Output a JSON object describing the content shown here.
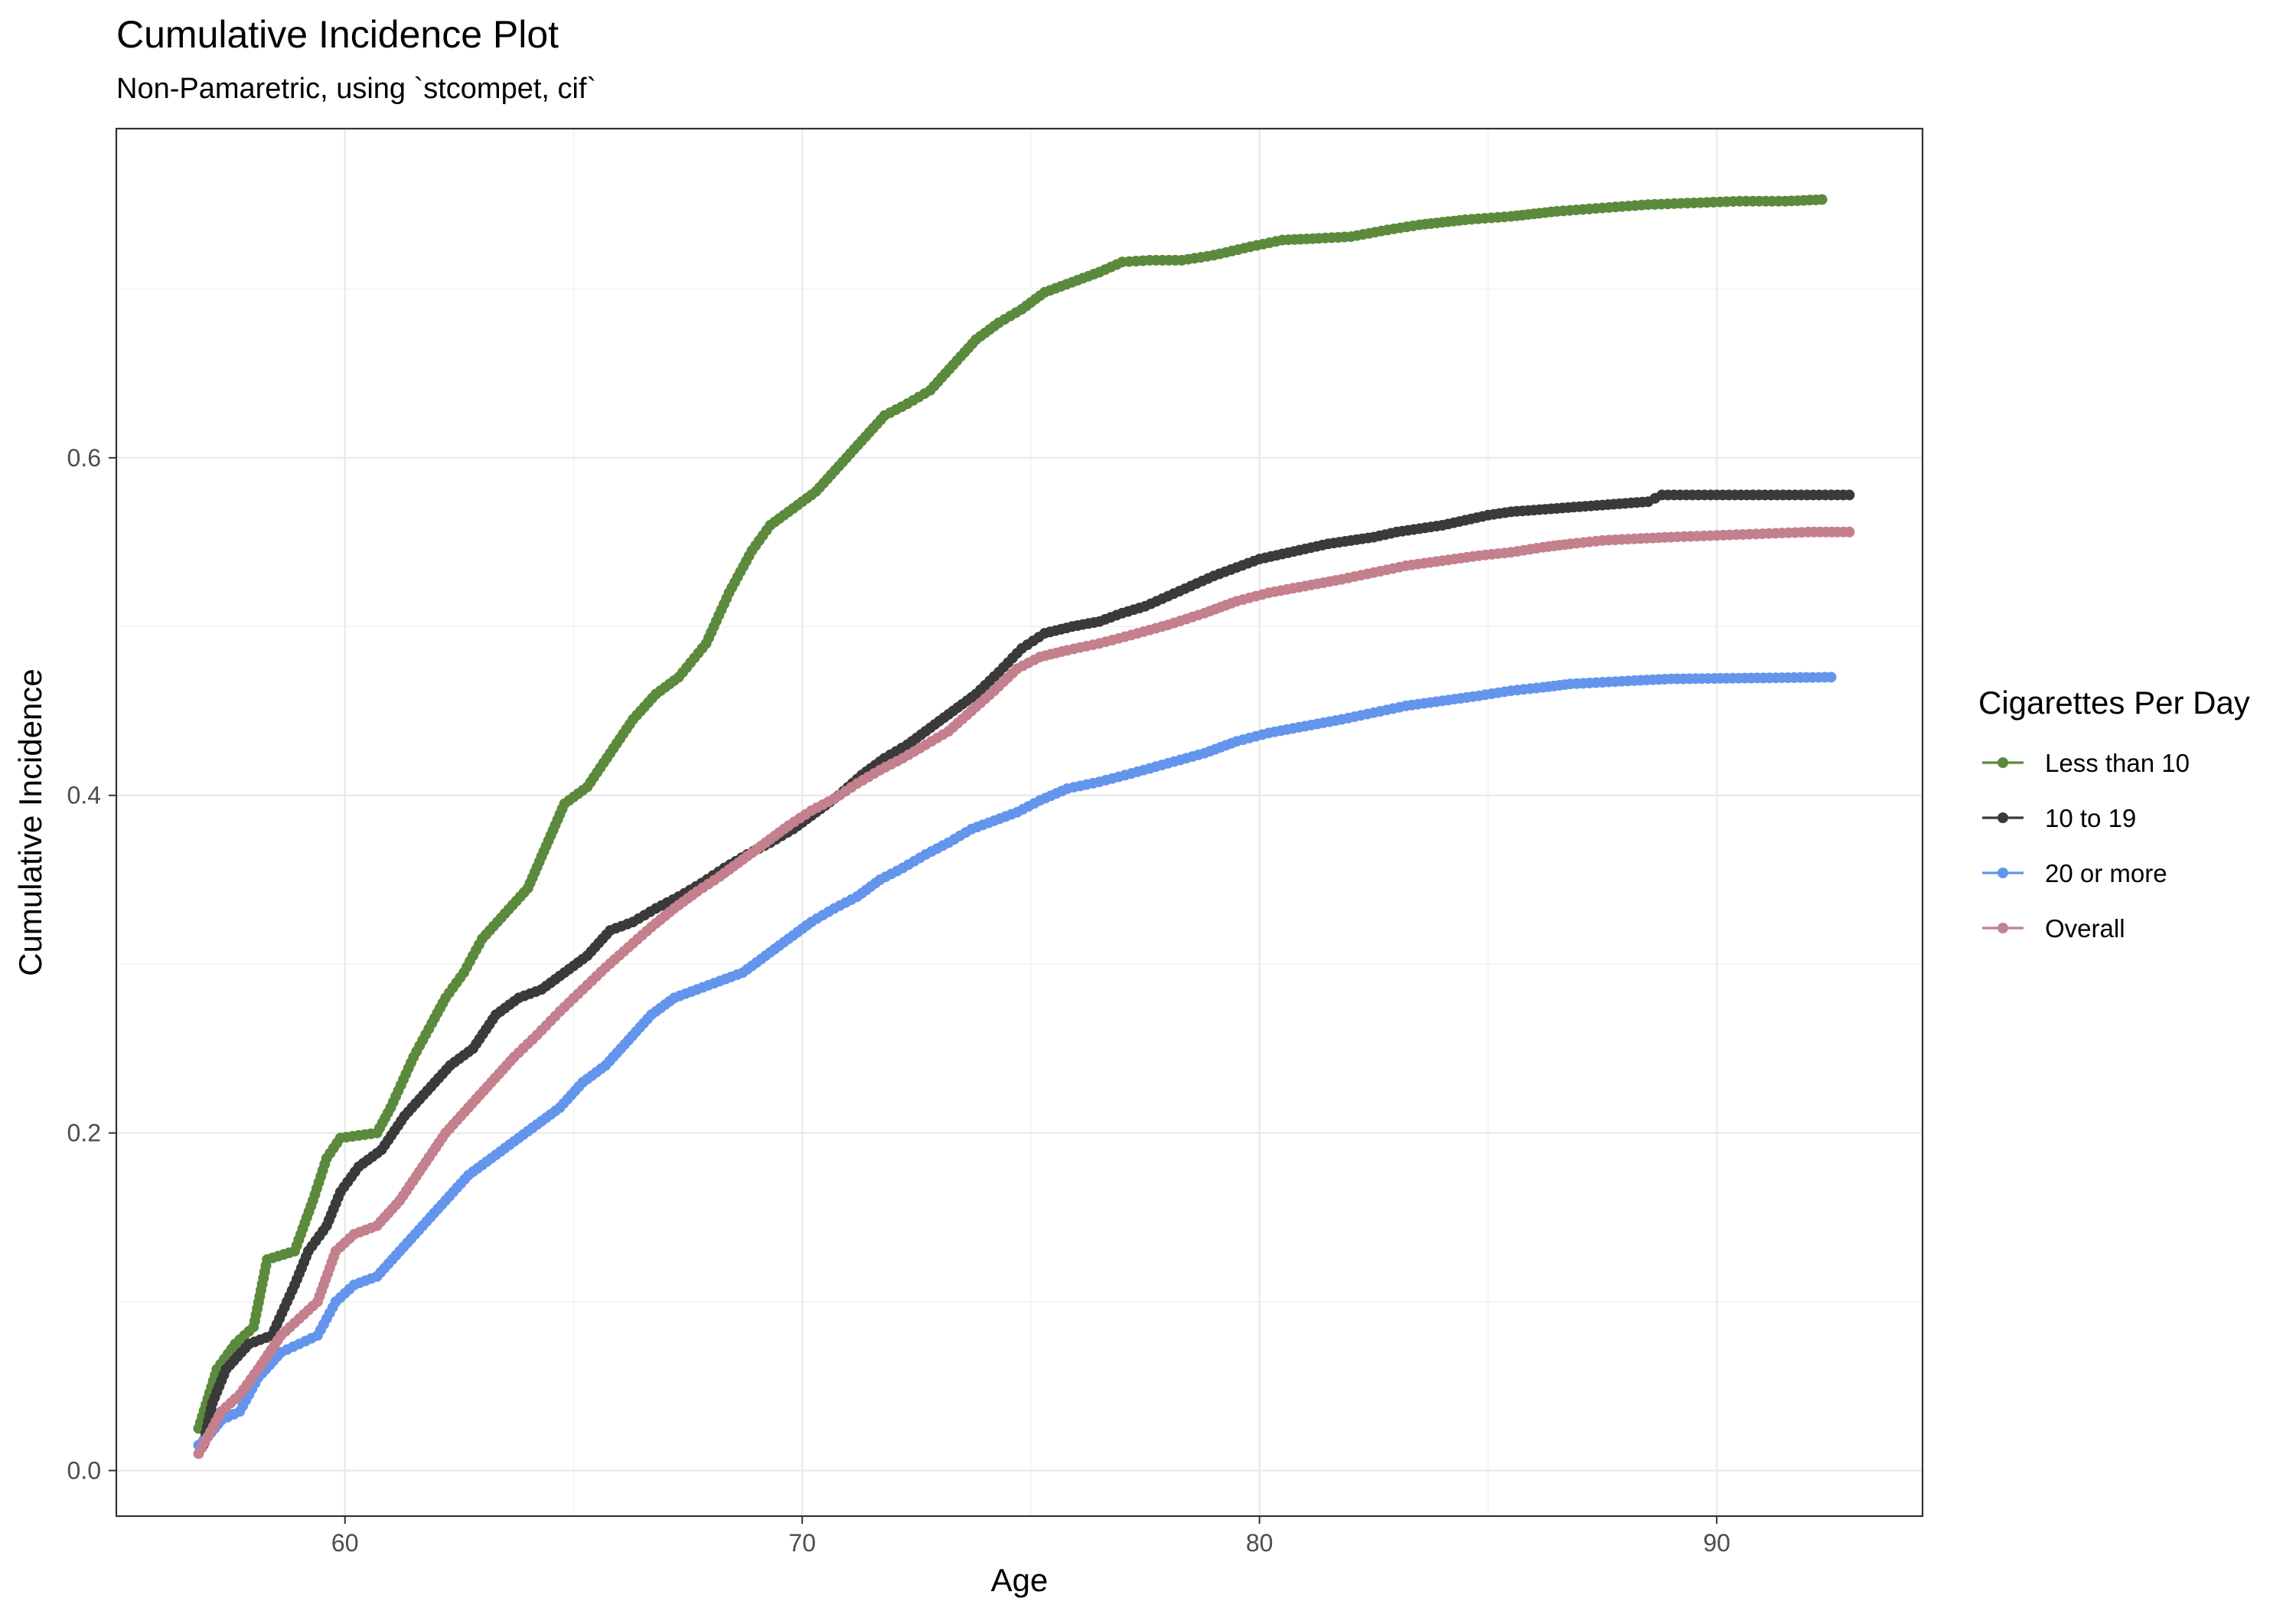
{
  "chart_data": {
    "type": "line",
    "title": "Cumulative Incidence Plot",
    "subtitle": "Non-Pamaretric, using `stcompet, cif`",
    "xlabel": "Age",
    "ylabel": "Cumulative Incidence",
    "xlim": [
      55,
      94.5
    ],
    "ylim": [
      -0.027,
      0.795
    ],
    "x_ticks": [
      60,
      70,
      80,
      90
    ],
    "y_ticks": [
      0.0,
      0.2,
      0.4,
      0.6
    ],
    "x_tick_labels": [
      "60",
      "70",
      "80",
      "90"
    ],
    "y_tick_labels": [
      "0.0",
      "0.2",
      "0.4",
      "0.6"
    ],
    "grid": true,
    "step_curves": false,
    "markers": "points",
    "legend": {
      "title": "Cigarettes Per Day",
      "position": "right"
    },
    "series": [
      {
        "name": "Less than 10",
        "color": "#5b8a3c",
        "x": [
          56.8,
          57.2,
          57.6,
          58.0,
          58.3,
          58.9,
          59.3,
          59.6,
          59.9,
          60.7,
          61.0,
          61.5,
          61.9,
          62.2,
          62.6,
          63.0,
          63.5,
          64.0,
          64.4,
          64.8,
          65.3,
          65.8,
          66.3,
          66.8,
          67.3,
          67.9,
          68.4,
          68.9,
          69.3,
          69.8,
          70.3,
          70.8,
          71.3,
          71.8,
          72.3,
          72.8,
          73.3,
          73.8,
          74.3,
          74.8,
          75.3,
          75.9,
          76.5,
          77.0,
          77.6,
          78.3,
          79.0,
          79.8,
          80.5,
          81.3,
          82.0,
          82.8,
          83.5,
          84.5,
          85.5,
          86.5,
          87.5,
          88.5,
          89.5,
          90.5,
          91.5,
          92.3
        ],
        "y": [
          0.025,
          0.06,
          0.075,
          0.085,
          0.125,
          0.13,
          0.16,
          0.185,
          0.197,
          0.2,
          0.215,
          0.245,
          0.265,
          0.28,
          0.295,
          0.315,
          0.33,
          0.345,
          0.37,
          0.395,
          0.405,
          0.425,
          0.445,
          0.46,
          0.47,
          0.49,
          0.52,
          0.545,
          0.56,
          0.57,
          0.58,
          0.595,
          0.61,
          0.625,
          0.632,
          0.64,
          0.655,
          0.67,
          0.68,
          0.688,
          0.698,
          0.704,
          0.71,
          0.716,
          0.717,
          0.717,
          0.72,
          0.725,
          0.729,
          0.73,
          0.731,
          0.735,
          0.738,
          0.741,
          0.743,
          0.746,
          0.748,
          0.75,
          0.751,
          0.752,
          0.752,
          0.753
        ]
      },
      {
        "name": "10 to 19",
        "color": "#3a3a3a",
        "x": [
          56.9,
          57.1,
          57.4,
          57.9,
          58.4,
          58.9,
          59.2,
          59.6,
          59.9,
          60.3,
          60.8,
          61.3,
          61.8,
          62.3,
          62.8,
          63.3,
          63.8,
          64.3,
          64.8,
          65.3,
          65.8,
          66.3,
          66.8,
          67.3,
          67.8,
          68.3,
          68.8,
          69.3,
          69.8,
          70.3,
          70.8,
          71.3,
          71.8,
          72.3,
          72.8,
          73.3,
          73.8,
          74.3,
          74.8,
          75.3,
          75.9,
          76.5,
          77.0,
          77.5,
          78.0,
          78.5,
          79.0,
          79.5,
          80.0,
          80.5,
          81.0,
          81.5,
          82.0,
          82.5,
          83.0,
          83.5,
          84.0,
          84.5,
          85.0,
          85.5,
          86.0,
          86.5,
          87.0,
          87.5,
          88.0,
          88.5,
          88.8,
          90.0,
          92.9
        ],
        "y": [
          0.015,
          0.04,
          0.06,
          0.075,
          0.08,
          0.11,
          0.13,
          0.145,
          0.165,
          0.18,
          0.19,
          0.21,
          0.225,
          0.24,
          0.25,
          0.27,
          0.28,
          0.285,
          0.295,
          0.305,
          0.32,
          0.325,
          0.333,
          0.34,
          0.348,
          0.357,
          0.365,
          0.372,
          0.38,
          0.39,
          0.4,
          0.412,
          0.422,
          0.43,
          0.44,
          0.45,
          0.46,
          0.473,
          0.487,
          0.496,
          0.5,
          0.503,
          0.508,
          0.512,
          0.518,
          0.524,
          0.53,
          0.535,
          0.54,
          0.543,
          0.546,
          0.549,
          0.551,
          0.553,
          0.556,
          0.558,
          0.56,
          0.563,
          0.566,
          0.568,
          0.569,
          0.57,
          0.571,
          0.572,
          0.573,
          0.574,
          0.578,
          0.578,
          0.578
        ]
      },
      {
        "name": "20 or more",
        "color": "#6495ed",
        "x": [
          56.8,
          57.0,
          57.3,
          57.7,
          58.1,
          58.6,
          59.0,
          59.4,
          59.8,
          60.2,
          60.7,
          61.2,
          61.7,
          62.2,
          62.7,
          63.2,
          63.7,
          64.2,
          64.7,
          65.2,
          65.7,
          66.2,
          66.7,
          67.2,
          67.7,
          68.2,
          68.7,
          69.2,
          69.7,
          70.2,
          70.7,
          71.2,
          71.7,
          72.2,
          72.7,
          73.2,
          73.7,
          74.2,
          74.7,
          75.2,
          75.8,
          76.5,
          77.2,
          78.0,
          78.8,
          79.5,
          80.2,
          81.0,
          81.8,
          82.5,
          83.2,
          84.0,
          84.8,
          85.5,
          86.2,
          86.8,
          87.5,
          88.2,
          89.0,
          92.5
        ],
        "y": [
          0.015,
          0.02,
          0.03,
          0.035,
          0.055,
          0.07,
          0.075,
          0.08,
          0.1,
          0.11,
          0.115,
          0.13,
          0.145,
          0.16,
          0.175,
          0.185,
          0.195,
          0.205,
          0.215,
          0.23,
          0.24,
          0.255,
          0.27,
          0.28,
          0.285,
          0.29,
          0.295,
          0.305,
          0.315,
          0.325,
          0.333,
          0.34,
          0.35,
          0.357,
          0.365,
          0.372,
          0.38,
          0.385,
          0.39,
          0.397,
          0.404,
          0.408,
          0.413,
          0.419,
          0.425,
          0.432,
          0.437,
          0.441,
          0.445,
          0.449,
          0.453,
          0.456,
          0.459,
          0.462,
          0.464,
          0.466,
          0.467,
          0.468,
          0.469,
          0.47
        ]
      },
      {
        "name": "Overall",
        "color": "#c4808c",
        "x": [
          56.8,
          57.0,
          57.3,
          57.7,
          58.1,
          58.6,
          59.0,
          59.4,
          59.8,
          60.2,
          60.7,
          61.2,
          61.7,
          62.2,
          62.7,
          63.2,
          63.7,
          64.2,
          64.7,
          65.2,
          65.7,
          66.2,
          66.7,
          67.2,
          67.7,
          68.2,
          68.7,
          69.2,
          69.7,
          70.2,
          70.7,
          71.2,
          71.7,
          72.2,
          72.7,
          73.2,
          73.7,
          74.2,
          74.7,
          75.2,
          75.8,
          76.5,
          77.2,
          78.0,
          78.8,
          79.5,
          80.2,
          81.0,
          81.8,
          82.5,
          83.2,
          84.0,
          84.8,
          85.5,
          86.2,
          86.8,
          87.5,
          88.2,
          89.0,
          90.0,
          91.0,
          92.0,
          92.9
        ],
        "y": [
          0.01,
          0.02,
          0.035,
          0.045,
          0.06,
          0.08,
          0.09,
          0.1,
          0.13,
          0.14,
          0.145,
          0.16,
          0.18,
          0.2,
          0.215,
          0.23,
          0.245,
          0.258,
          0.272,
          0.285,
          0.298,
          0.31,
          0.322,
          0.333,
          0.343,
          0.352,
          0.362,
          0.372,
          0.382,
          0.391,
          0.398,
          0.407,
          0.415,
          0.422,
          0.43,
          0.438,
          0.45,
          0.462,
          0.475,
          0.482,
          0.486,
          0.49,
          0.495,
          0.501,
          0.508,
          0.515,
          0.52,
          0.524,
          0.528,
          0.532,
          0.536,
          0.539,
          0.542,
          0.544,
          0.547,
          0.549,
          0.551,
          0.552,
          0.553,
          0.554,
          0.555,
          0.556,
          0.556
        ]
      }
    ]
  }
}
